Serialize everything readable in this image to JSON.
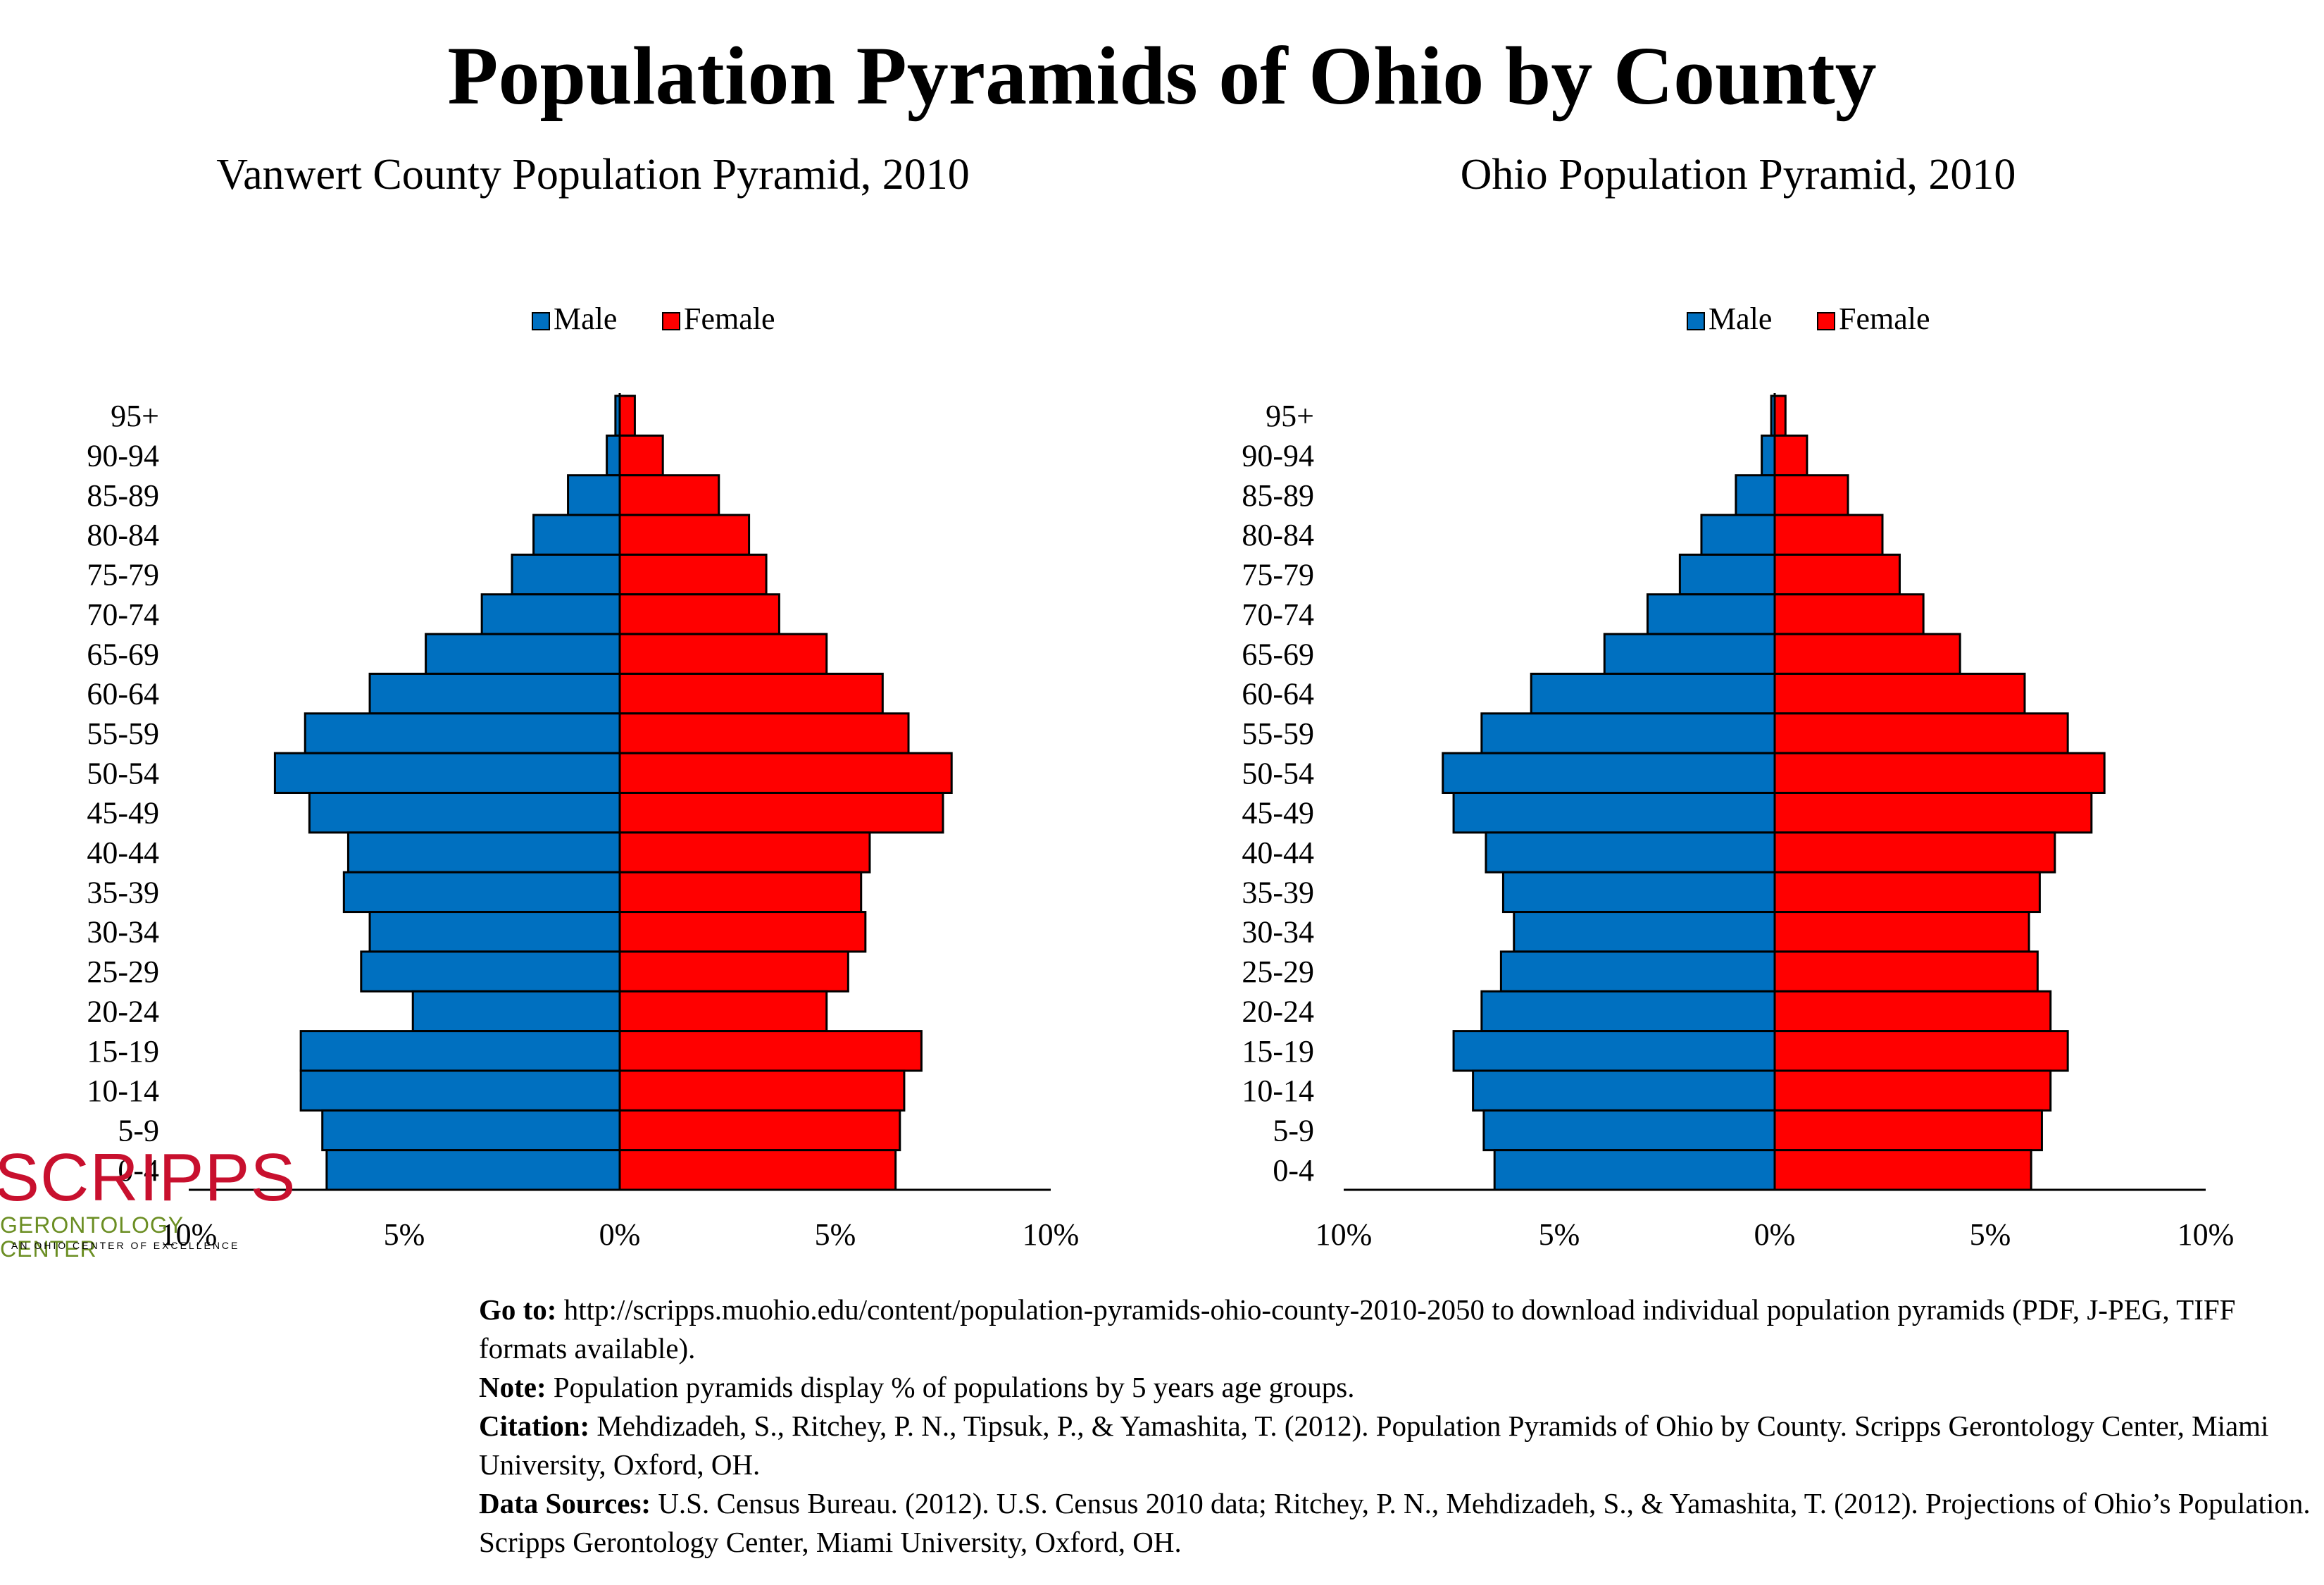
{
  "title": "Population Pyramids of Ohio by County",
  "colors": {
    "male": "#0070c0",
    "female": "#ff0000",
    "outline": "#000000"
  },
  "chart_data": [
    {
      "type": "bar",
      "orientation": "horizontal-pyramid",
      "title": "Vanwert County Population Pyramid, 2010",
      "legend": {
        "position": "top-center",
        "entries": [
          "Male",
          "Female"
        ]
      },
      "categories": [
        "95+",
        "90-94",
        "85-89",
        "80-84",
        "75-79",
        "70-74",
        "65-69",
        "60-64",
        "55-59",
        "50-54",
        "45-49",
        "40-44",
        "35-39",
        "30-34",
        "25-29",
        "20-24",
        "15-19",
        "10-14",
        "5-9",
        "0-4"
      ],
      "series": [
        {
          "name": "Male",
          "values": [
            0.1,
            0.3,
            1.2,
            2.0,
            2.5,
            3.2,
            4.5,
            5.8,
            7.3,
            8.0,
            7.2,
            6.3,
            6.4,
            5.8,
            6.0,
            4.8,
            7.4,
            7.4,
            6.9,
            6.8
          ]
        },
        {
          "name": "Female",
          "values": [
            0.35,
            1.0,
            2.3,
            3.0,
            3.4,
            3.7,
            4.8,
            6.1,
            6.7,
            7.7,
            7.5,
            5.8,
            5.6,
            5.7,
            5.3,
            4.8,
            7.0,
            6.6,
            6.5,
            6.4
          ]
        }
      ],
      "xlim": [
        -10,
        10
      ],
      "xticks": [
        "10%",
        "5%",
        "0%",
        "5%",
        "10%"
      ],
      "grid": false
    },
    {
      "type": "bar",
      "orientation": "horizontal-pyramid",
      "title": "Ohio Population Pyramid, 2010",
      "legend": {
        "position": "top-center",
        "entries": [
          "Male",
          "Female"
        ]
      },
      "categories": [
        "95+",
        "90-94",
        "85-89",
        "80-84",
        "75-79",
        "70-74",
        "65-69",
        "60-64",
        "55-59",
        "50-54",
        "45-49",
        "40-44",
        "35-39",
        "30-34",
        "25-29",
        "20-24",
        "15-19",
        "10-14",
        "5-9",
        "0-4"
      ],
      "series": [
        {
          "name": "Male",
          "values": [
            0.08,
            0.3,
            0.9,
            1.7,
            2.2,
            2.95,
            3.95,
            5.65,
            6.8,
            7.7,
            7.45,
            6.7,
            6.3,
            6.05,
            6.35,
            6.8,
            7.45,
            7.0,
            6.75,
            6.5
          ]
        },
        {
          "name": "Female",
          "values": [
            0.25,
            0.75,
            1.7,
            2.5,
            2.9,
            3.45,
            4.3,
            5.8,
            6.8,
            7.65,
            7.35,
            6.5,
            6.15,
            5.9,
            6.1,
            6.4,
            6.8,
            6.4,
            6.2,
            5.95
          ]
        }
      ],
      "xlim": [
        -10,
        10
      ],
      "xticks": [
        "10%",
        "5%",
        "0%",
        "5%",
        "10%"
      ],
      "grid": false
    }
  ],
  "logo": {
    "main": "SCRIPPS",
    "sub": "GERONTOLOGY CENTER",
    "tagline": "AN OHIO CENTER OF EXCELLENCE"
  },
  "notes": {
    "goto_label": "Go to:",
    "goto_text": " http://scripps.muohio.edu/content/population-pyramids-ohio-county-2010-2050 to download individual population pyramids (PDF, J-PEG, TIFF formats available).",
    "note_label": "Note:",
    "note_text": " Population pyramids display % of populations by 5 years age groups.",
    "citation_label": "Citation:",
    "citation_text": " Mehdizadeh, S., Ritchey, P. N., Tipsuk, P., & Yamashita, T. (2012). Population Pyramids of Ohio by County. Scripps Gerontology Center, Miami University, Oxford, OH.",
    "sources_label": "Data Sources:",
    "sources_text": " U.S. Census Bureau. (2012). U.S. Census 2010 data; Ritchey, P. N., Mehdizadeh, S., & Yamashita, T. (2012). Projections of Ohio’s Population. Scripps Gerontology Center, Miami University, Oxford, OH."
  }
}
